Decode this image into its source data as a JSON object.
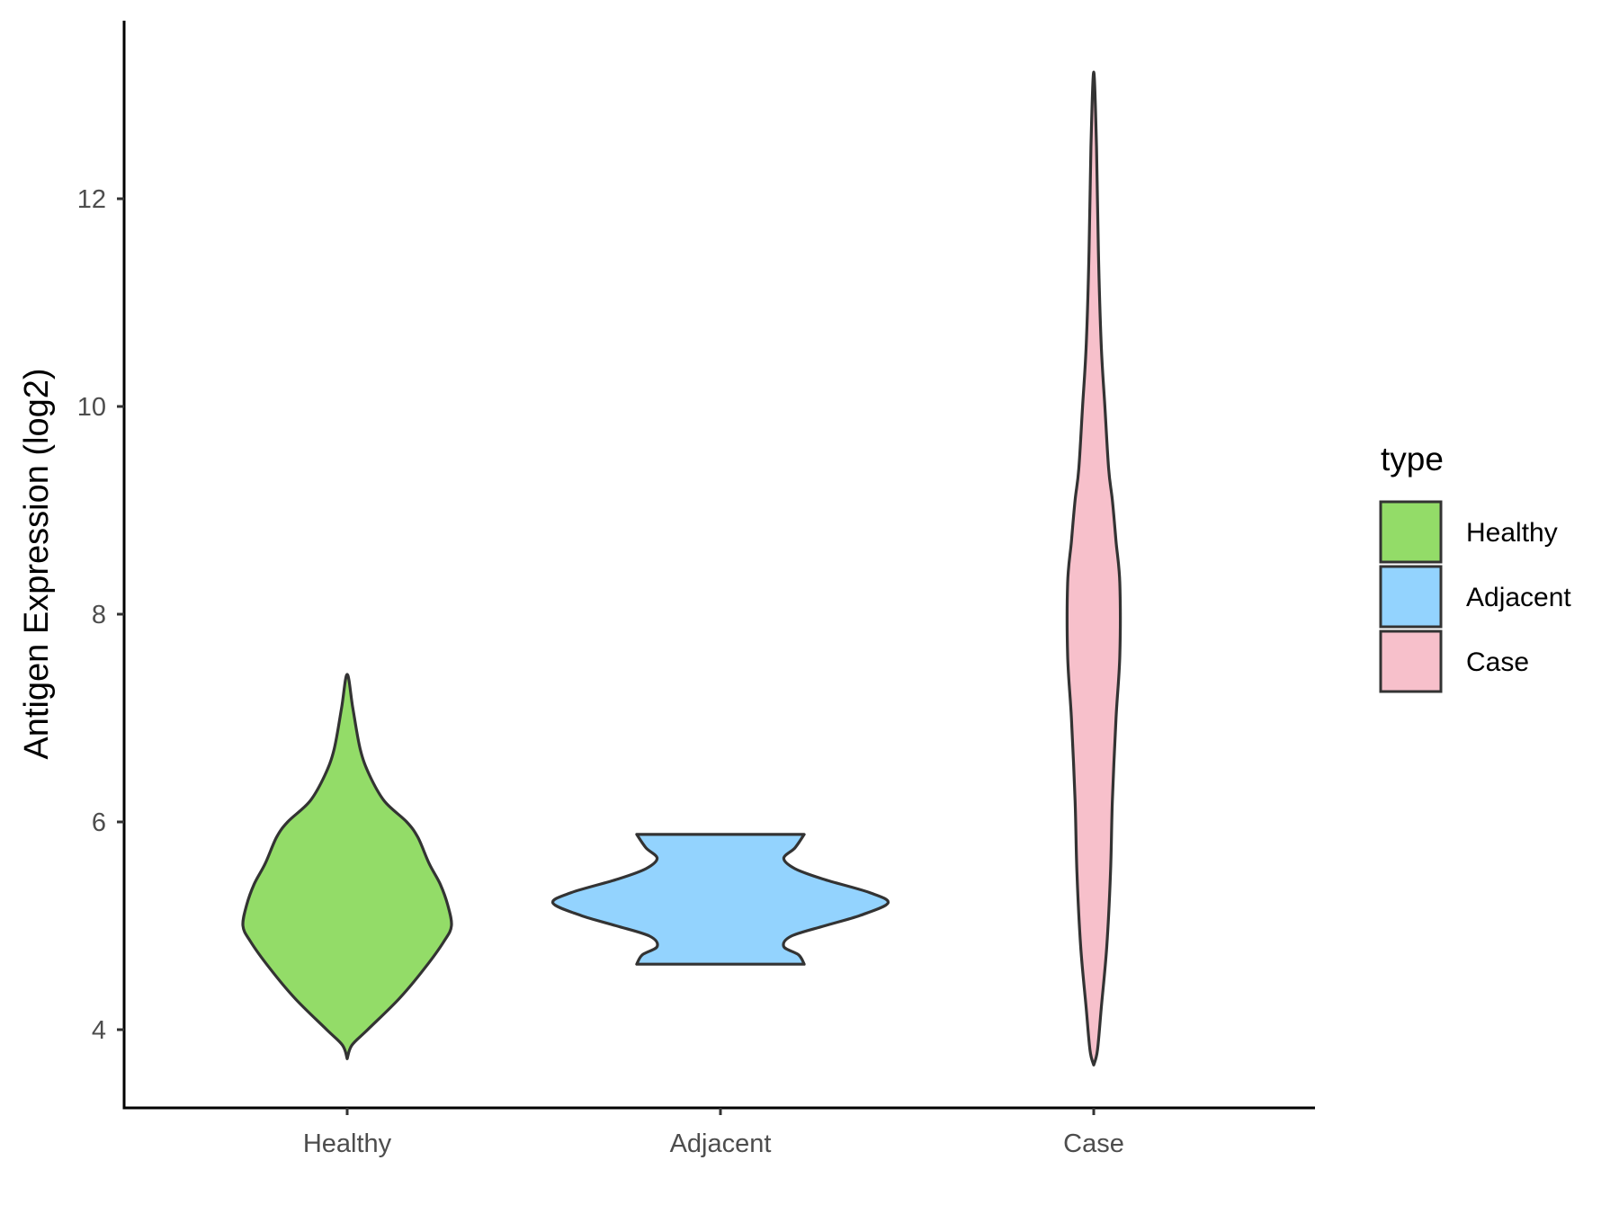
{
  "chart_data": {
    "type": "violin",
    "title": "",
    "xlabel": "",
    "ylabel": "Antigen Expression (log2)",
    "ylim": [
      3.2,
      13.7
    ],
    "yticks": [
      4,
      6,
      8,
      10,
      12
    ],
    "categories": [
      "Healthy",
      "Adjacent",
      "Case"
    ],
    "legend": {
      "title": "type",
      "position": "right",
      "entries": [
        "Healthy",
        "Adjacent",
        "Case"
      ]
    },
    "grid": false,
    "series": [
      {
        "name": "Healthy",
        "color": "#93dc68",
        "min": 3.72,
        "max": 7.42,
        "profile": [
          [
            3.72,
            0.0
          ],
          [
            3.85,
            0.025
          ],
          [
            4.0,
            0.11
          ],
          [
            4.3,
            0.28
          ],
          [
            4.6,
            0.42
          ],
          [
            4.85,
            0.52
          ],
          [
            5.0,
            0.56
          ],
          [
            5.2,
            0.54
          ],
          [
            5.4,
            0.5
          ],
          [
            5.6,
            0.44
          ],
          [
            5.85,
            0.38
          ],
          [
            6.0,
            0.32
          ],
          [
            6.2,
            0.2
          ],
          [
            6.45,
            0.12
          ],
          [
            6.7,
            0.07
          ],
          [
            7.1,
            0.03
          ],
          [
            7.42,
            0.0
          ]
        ]
      },
      {
        "name": "Adjacent",
        "color": "#93d3fe",
        "min": 4.63,
        "max": 5.88,
        "profile": [
          [
            4.63,
            0.45
          ],
          [
            4.72,
            0.42
          ],
          [
            4.8,
            0.34
          ],
          [
            4.9,
            0.38
          ],
          [
            5.0,
            0.56
          ],
          [
            5.1,
            0.75
          ],
          [
            5.22,
            0.9
          ],
          [
            5.32,
            0.8
          ],
          [
            5.45,
            0.55
          ],
          [
            5.55,
            0.4
          ],
          [
            5.65,
            0.34
          ],
          [
            5.75,
            0.4
          ],
          [
            5.88,
            0.45
          ]
        ]
      },
      {
        "name": "Case",
        "color": "#f7c0cb",
        "min": 3.66,
        "max": 13.22,
        "profile": [
          [
            3.66,
            0.0
          ],
          [
            3.8,
            0.02
          ],
          [
            4.2,
            0.04
          ],
          [
            4.8,
            0.07
          ],
          [
            5.5,
            0.09
          ],
          [
            6.2,
            0.1
          ],
          [
            7.0,
            0.12
          ],
          [
            7.6,
            0.14
          ],
          [
            8.3,
            0.14
          ],
          [
            8.7,
            0.12
          ],
          [
            9.1,
            0.1
          ],
          [
            9.4,
            0.08
          ],
          [
            10.0,
            0.06
          ],
          [
            10.6,
            0.04
          ],
          [
            11.5,
            0.025
          ],
          [
            12.5,
            0.015
          ],
          [
            13.22,
            0.0
          ]
        ]
      }
    ]
  }
}
